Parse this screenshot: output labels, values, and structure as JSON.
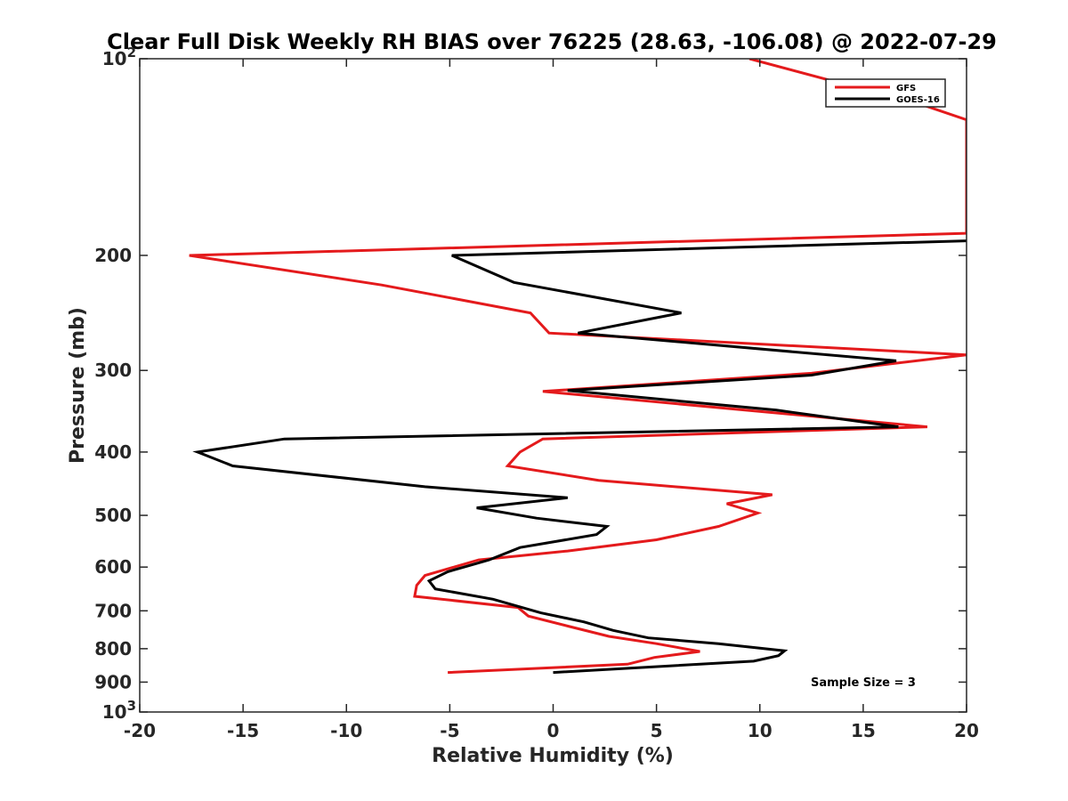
{
  "chart_data": {
    "type": "line",
    "title": "Clear Full Disk Weekly RH BIAS over 76225 (28.63, -106.08) @ 2022-07-29",
    "xlabel": "Relative Humidity (%)",
    "ylabel": "Pressure (mb)",
    "xlim": [
      -20,
      20
    ],
    "ylim": [
      100,
      1000
    ],
    "y_scale": "log",
    "y_reversed": true,
    "x_ticks": [
      "-20",
      "-15",
      "-10",
      "-5",
      "0",
      "5",
      "10",
      "15",
      "20"
    ],
    "y_ticks": [
      {
        "value": 100,
        "base": "10",
        "exp": "2"
      },
      {
        "value": 200,
        "label": "200"
      },
      {
        "value": 300,
        "label": "300"
      },
      {
        "value": 400,
        "label": "400"
      },
      {
        "value": 500,
        "label": "500"
      },
      {
        "value": 600,
        "label": "600"
      },
      {
        "value": 700,
        "label": "700"
      },
      {
        "value": 800,
        "label": "800"
      },
      {
        "value": 900,
        "label": "900"
      },
      {
        "value": 1000,
        "base": "10",
        "exp": "3"
      }
    ],
    "grid": false,
    "legend_position": "top-right",
    "annotation": "Sample Size = 3",
    "series": [
      {
        "name": "GFS",
        "color": "#e41a1c",
        "points": [
          [
            9.5,
            100
          ],
          [
            18,
            118
          ],
          [
            20,
            124
          ],
          [
            20,
            185
          ],
          [
            -17.6,
            200
          ],
          [
            -8.3,
            222
          ],
          [
            -1.1,
            245
          ],
          [
            -0.2,
            263
          ],
          [
            20,
            284
          ],
          [
            12.5,
            303
          ],
          [
            -0.5,
            323
          ],
          [
            18.1,
            366
          ],
          [
            -0.5,
            382
          ],
          [
            -1.6,
            400
          ],
          [
            -2.2,
            420
          ],
          [
            2.2,
            442
          ],
          [
            10.6,
            465
          ],
          [
            8.4,
            480
          ],
          [
            9.9,
            496
          ],
          [
            8,
            520
          ],
          [
            5,
            545
          ],
          [
            0.7,
            567
          ],
          [
            -3.6,
            585
          ],
          [
            -6.2,
            618
          ],
          [
            -6.6,
            640
          ],
          [
            -6.7,
            665
          ],
          [
            -1.7,
            692
          ],
          [
            -1.2,
            713
          ],
          [
            0.8,
            740
          ],
          [
            2.7,
            766
          ],
          [
            5,
            786
          ],
          [
            7.1,
            808
          ],
          [
            4.9,
            825
          ],
          [
            3.6,
            845
          ],
          [
            -5.1,
            870
          ]
        ]
      },
      {
        "name": "GOES-16",
        "color": "#000000",
        "points": [
          [
            20,
            190
          ],
          [
            -4.9,
            200
          ],
          [
            -1.9,
            220
          ],
          [
            6.2,
            245
          ],
          [
            1.2,
            263
          ],
          [
            16.6,
            290
          ],
          [
            12.5,
            305
          ],
          [
            0.7,
            322
          ],
          [
            10.8,
            345
          ],
          [
            16.7,
            366
          ],
          [
            -13,
            382
          ],
          [
            -17.2,
            400
          ],
          [
            -15.5,
            420
          ],
          [
            -6.2,
            452
          ],
          [
            0.7,
            470
          ],
          [
            -3.7,
            487
          ],
          [
            -0.8,
            505
          ],
          [
            2.6,
            520
          ],
          [
            2.1,
            535
          ],
          [
            -1.6,
            560
          ],
          [
            -3.1,
            585
          ],
          [
            -5.1,
            610
          ],
          [
            -6,
            630
          ],
          [
            -5.7,
            648
          ],
          [
            -2.9,
            672
          ],
          [
            -0.6,
            705
          ],
          [
            1.5,
            728
          ],
          [
            2.9,
            750
          ],
          [
            4.6,
            770
          ],
          [
            8,
            786
          ],
          [
            11.2,
            806
          ],
          [
            10.9,
            820
          ],
          [
            9.7,
            836
          ],
          [
            0,
            870
          ]
        ]
      }
    ]
  }
}
